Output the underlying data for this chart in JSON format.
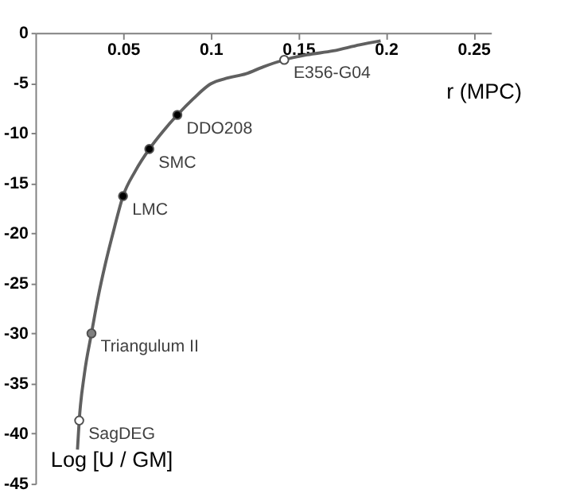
{
  "chart_data": {
    "type": "line",
    "xlabel": "r (MPC)",
    "ylabel": "Log [U / GM]",
    "xlim": [
      0,
      0.26
    ],
    "xticks": [
      0.05,
      0.1,
      0.15,
      0.2,
      0.25
    ],
    "ylim": [
      -45,
      0
    ],
    "yticks": [
      0,
      -5,
      -10,
      -15,
      -20,
      -25,
      -30,
      -35,
      -40,
      -45
    ],
    "grid": false,
    "series": [
      {
        "color": "#606060",
        "marker": "none",
        "line_style": "solid",
        "x": [
          0.024,
          0.025,
          0.028,
          0.032,
          0.036,
          0.04,
          0.045,
          0.05,
          0.057,
          0.065,
          0.073,
          0.081,
          0.09,
          0.1,
          0.11,
          0.12,
          0.13,
          0.142,
          0.155,
          0.17,
          0.185,
          0.197
        ],
        "values": [
          -41.6,
          -38.7,
          -34,
          -30,
          -26.2,
          -23,
          -19.5,
          -16.3,
          -13.8,
          -11.6,
          -9.8,
          -8.2,
          -6.6,
          -5.1,
          -4.5,
          -4.1,
          -3.4,
          -2.7,
          -2.2,
          -1.8,
          -1.2,
          -0.8
        ]
      },
      {
        "type": "scatter",
        "marker": "circle",
        "x": [
          0.025,
          0.032,
          0.05,
          0.065,
          0.081,
          0.142
        ],
        "values": [
          -38.7,
          -30,
          -16.3,
          -11.6,
          -8.2,
          -2.7
        ],
        "colors": [
          "#ffffff",
          "#808080",
          "#000000",
          "#000000",
          "#000000",
          "#ffffff"
        ]
      }
    ],
    "annotations": [
      {
        "text": "SagDEG",
        "x": 0.025,
        "y": -38.7
      },
      {
        "text": "Triangulum II",
        "x": 0.032,
        "y": -30
      },
      {
        "text": "LMC",
        "x": 0.05,
        "y": -16.3
      },
      {
        "text": "SMC",
        "x": 0.065,
        "y": -11.6
      },
      {
        "text": "DDO208",
        "x": 0.081,
        "y": -8.2
      },
      {
        "text": "E356-G04",
        "x": 0.142,
        "y": -2.7
      }
    ]
  }
}
